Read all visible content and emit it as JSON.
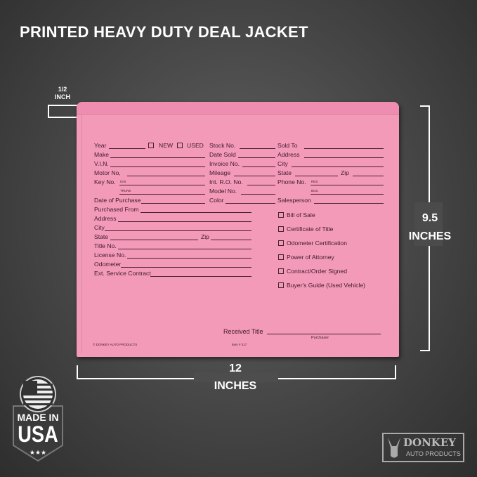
{
  "title": "PRINTED HEAVY DUTY DEAL JACKET",
  "dimensions": {
    "flap_value": "1/2",
    "flap_unit": "INCH",
    "height_value": "9.5",
    "height_unit": "INCHES",
    "width_value": "12",
    "width_unit": "INCHES"
  },
  "form": {
    "left": {
      "year": "Year",
      "new": "NEW",
      "used": "USED",
      "make": "Make",
      "vin": "V.I.N.",
      "motor": "Motor No,",
      "key": "Key No.",
      "ign": "IGN",
      "trunk": "TRUNK",
      "date_purchase": "Date of Purchase",
      "purchased_from": "Purchased From",
      "address": "Address",
      "city": "City",
      "state": "State",
      "zip": "Zip",
      "title_no": "Title No.",
      "license": "License No.",
      "odometer": "Odometer",
      "ext_service": "Ext. Service Contract"
    },
    "middle": {
      "stock": "Stock No.",
      "date_sold": "Date Sold",
      "invoice": "Invoice No.",
      "mileage": "Mileage",
      "int_ro": "Int. R.O. No.",
      "model": "Model No.",
      "color": "Color"
    },
    "right": {
      "sold_to": "Sold To",
      "address": "Address",
      "city": "City",
      "state": "State",
      "zip": "Zip",
      "phone": "Phone No.",
      "res": "RES.",
      "bus": "BUS.",
      "salesperson": "Salesperson"
    },
    "checklist": [
      "Bill of Sale",
      "Certificate of Title",
      "Odometer Certification",
      "Power of Attorney",
      "Contract/Order Signed",
      "Buyer's Guide (Used Vehicle)"
    ],
    "received_title": "Received Title",
    "purchaser": "Purchaser",
    "footer_brand": "© DONKEY AUTO PRODUCTS",
    "item_no": "Item # 317"
  },
  "badge": {
    "line1": "MADE IN",
    "line2": "USA"
  },
  "logo": {
    "name": "DONKEY",
    "sub": "AUTO PRODUCTS"
  },
  "colors": {
    "paper": "#f39ab9",
    "ink": "#3f1a2a",
    "background": "#4a4a4a"
  }
}
